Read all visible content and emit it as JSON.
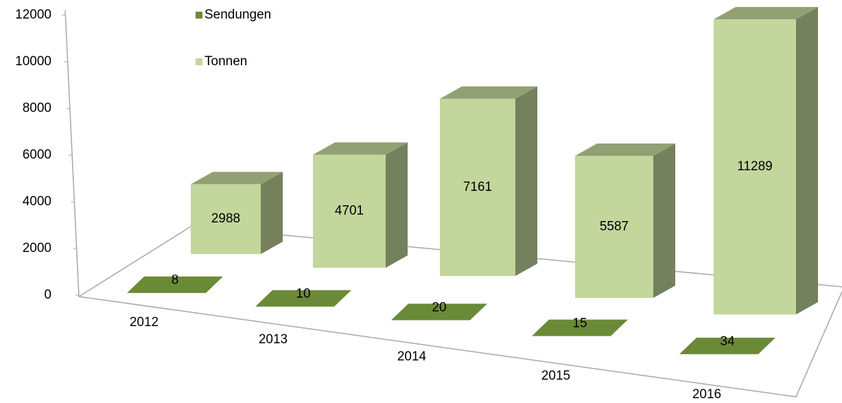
{
  "chart_data": {
    "type": "bar3d",
    "categories": [
      "2012",
      "2013",
      "2014",
      "2015",
      "2016"
    ],
    "series": [
      {
        "name": "Sendungen",
        "color": "#6b8a37",
        "values": [
          8,
          10,
          20,
          15,
          34
        ]
      },
      {
        "name": "Tonnen",
        "color": "#c3d69b",
        "values": [
          2988,
          4701,
          7161,
          5587,
          11289
        ]
      }
    ],
    "ylim": [
      0,
      12000
    ],
    "yticks": [
      0,
      2000,
      4000,
      6000,
      8000,
      10000,
      12000
    ],
    "grid": false,
    "legend": "top-left"
  }
}
